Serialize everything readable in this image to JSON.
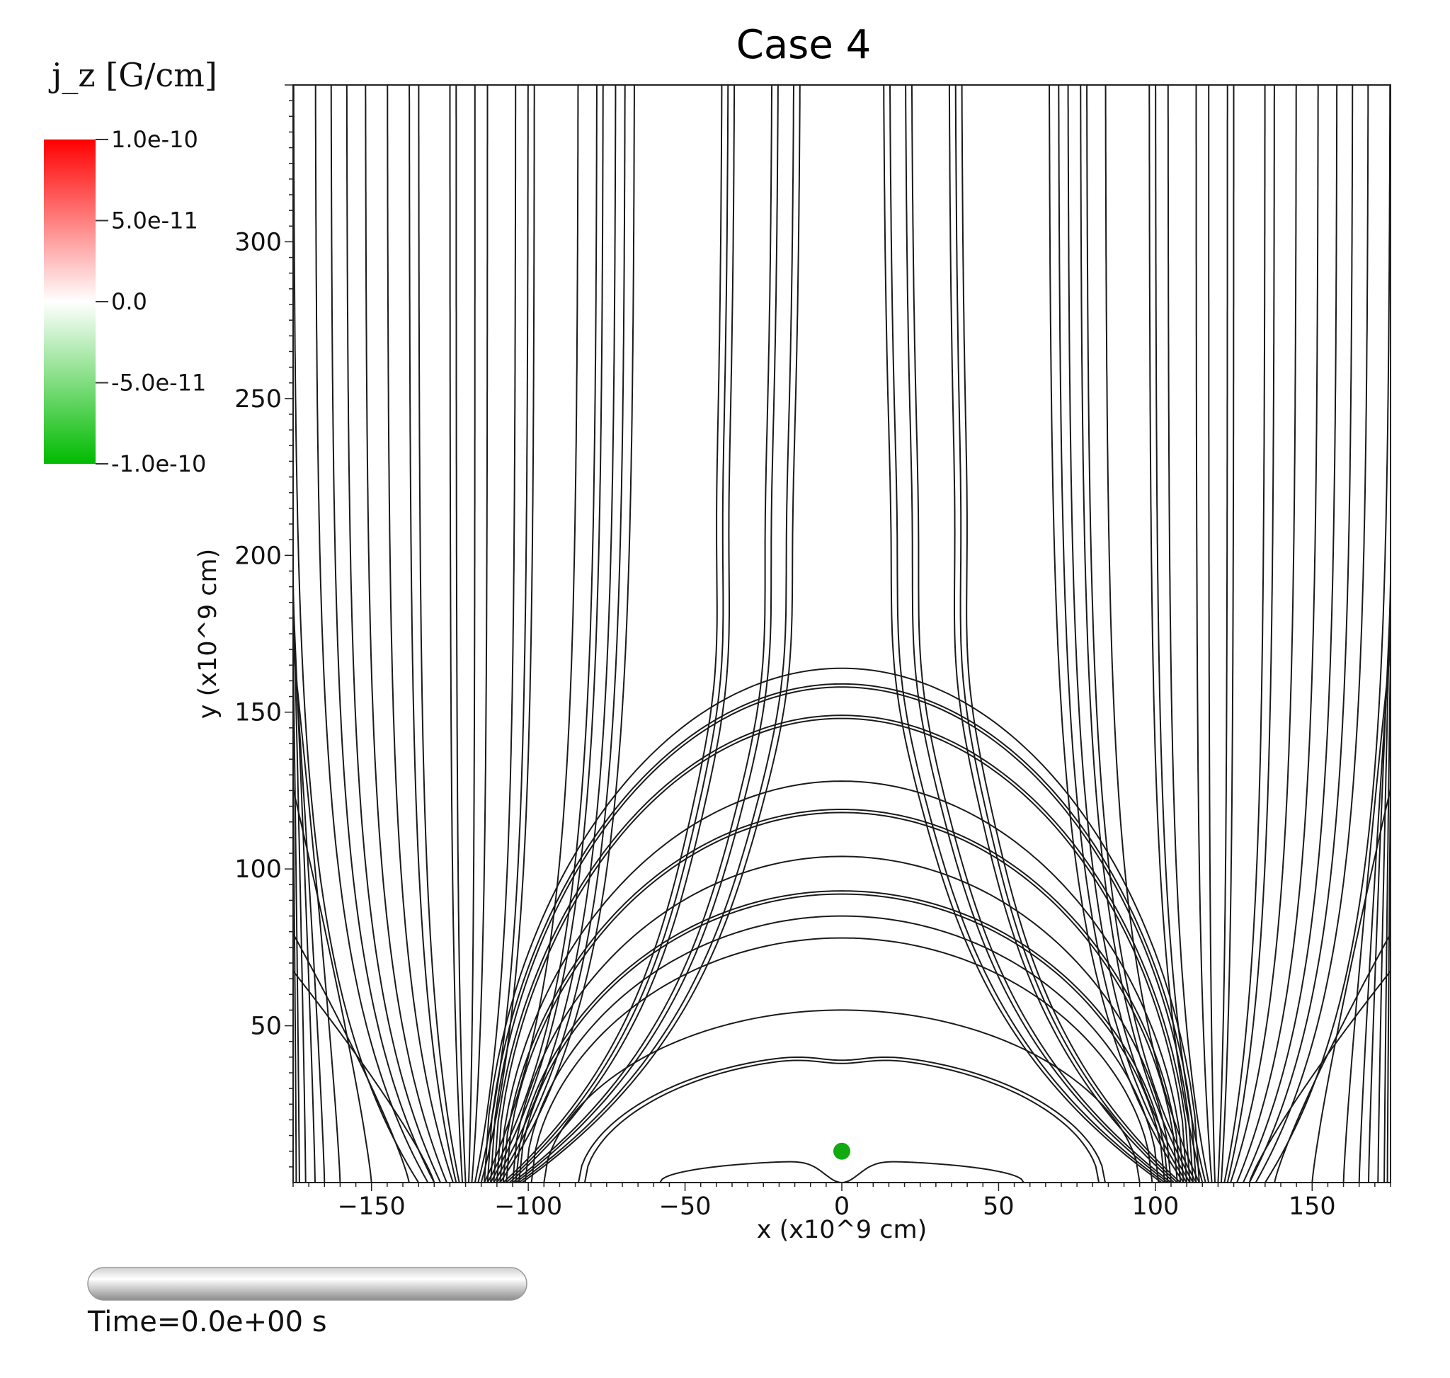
{
  "chart_data": {
    "type": "line",
    "title": "Case 4",
    "xlabel": "x (x10^9 cm)",
    "ylabel": "y (x10^9 cm)",
    "xlim": [
      -175,
      175
    ],
    "ylim": [
      0,
      350
    ],
    "xticks": [
      -150,
      -100,
      -50,
      0,
      50,
      100,
      150
    ],
    "yticks": [
      50,
      100,
      150,
      200,
      250,
      300
    ],
    "colorbar": {
      "title": "j_z [G/cm]",
      "min": -1e-10,
      "max": 1e-10,
      "ticks": [
        "1.0e-10",
        "5.0e-11",
        "0.0",
        "-5.0e-11",
        "-1.0e-10"
      ],
      "color_max": "#ff0000",
      "color_mid": "#ffffff",
      "color_min": "#00bb00"
    },
    "marker": {
      "x": 0,
      "y": 10,
      "color": "#11aa11"
    },
    "loops": [
      {
        "foot": 82,
        "apex": 40,
        "dip": 38
      },
      {
        "foot": 84,
        "apex": 41,
        "dip": 39
      },
      {
        "foot": 95,
        "apex": 55
      },
      {
        "foot": 99,
        "apex": 78
      },
      {
        "foot": 101,
        "apex": 85
      },
      {
        "foot": 103,
        "apex": 92
      },
      {
        "foot": 104,
        "apex": 93
      },
      {
        "foot": 105,
        "apex": 104
      },
      {
        "foot": 107,
        "apex": 118
      },
      {
        "foot": 108,
        "apex": 119
      },
      {
        "foot": 109,
        "apex": 128
      },
      {
        "foot": 110,
        "apex": 148
      },
      {
        "foot": 111,
        "apex": 149
      },
      {
        "foot": 112,
        "apex": 158
      },
      {
        "foot": 113,
        "apex": 159
      },
      {
        "foot": 114,
        "apex": 164
      }
    ],
    "small_loop": {
      "foot": 58,
      "apex": 7
    },
    "open_lines": [
      {
        "foot": 102,
        "top": 13
      },
      {
        "foot": 103,
        "top": 15
      },
      {
        "foot": 104,
        "top": 20
      },
      {
        "foot": 105,
        "top": 22
      },
      {
        "foot": 106,
        "top": 34
      },
      {
        "foot": 107,
        "top": 36
      },
      {
        "foot": 108,
        "top": 38
      },
      {
        "foot": 109,
        "top": 66
      },
      {
        "foot": 110,
        "top": 69
      },
      {
        "foot": 111,
        "top": 72
      },
      {
        "foot": 112,
        "top": 76
      },
      {
        "foot": 113,
        "top": 78
      },
      {
        "foot": 114,
        "top": 84
      },
      {
        "foot": 115,
        "top": 98
      },
      {
        "foot": 116,
        "top": 100
      },
      {
        "foot": 117,
        "top": 104
      },
      {
        "foot": 118,
        "top": 113
      },
      {
        "foot": 119,
        "top": 117
      },
      {
        "foot": 120,
        "top": 123
      },
      {
        "foot": 121,
        "top": 125
      },
      {
        "foot": 122,
        "top": 135
      },
      {
        "foot": 123,
        "top": 138
      },
      {
        "foot": 124,
        "top": 145
      },
      {
        "foot": 126,
        "top": 152
      },
      {
        "foot": 128,
        "top": 158
      },
      {
        "foot": 130,
        "top": 163
      },
      {
        "foot": 132,
        "top": 168
      },
      {
        "foot": 135,
        "top": 175
      }
    ],
    "edge_lines": [
      {
        "foot": 130,
        "edge_y": 70
      },
      {
        "foot": 138,
        "edge_y": 83
      },
      {
        "foot": 150,
        "edge_y": 134
      },
      {
        "foot": 160,
        "edge_y": 190
      },
      {
        "foot": 165,
        "edge_y": 205
      },
      {
        "foot": 168,
        "edge_y": 231
      },
      {
        "foot": 171,
        "edge_y": 270
      },
      {
        "foot": 173,
        "edge_y": 306
      },
      {
        "foot": 174,
        "edge_y": 330
      }
    ]
  },
  "time_label": "Time=0.0e+00 s"
}
